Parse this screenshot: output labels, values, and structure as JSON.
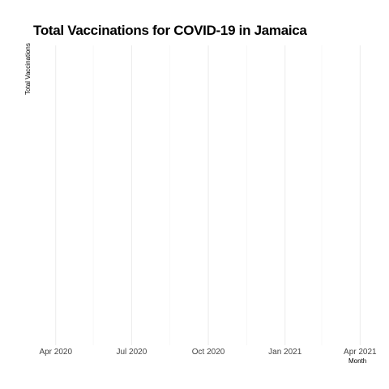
{
  "chart_data": {
    "type": "line",
    "title": "Total Vaccinations for COVID-19 in Jamaica",
    "xlabel": "Month",
    "ylabel": "Total Vaccinations",
    "x_tick_labels": [
      "Apr 2020",
      "Jul 2020",
      "Oct 2020",
      "Jan 2021",
      "Apr 2021"
    ],
    "x_major_ticks": [
      "2020-04-01",
      "2020-07-01",
      "2020-10-01",
      "2021-01-01",
      "2021-04-01"
    ],
    "x_minor_ticks": [
      "2020-05-16",
      "2020-08-16",
      "2020-11-16",
      "2021-02-14"
    ],
    "xlim": [
      "2020-03-06",
      "2021-04-24"
    ],
    "series": [],
    "grid": true,
    "colors": {
      "major_grid": "#ebebeb",
      "minor_grid": "#f2f2f2",
      "background": "#ffffff"
    }
  }
}
